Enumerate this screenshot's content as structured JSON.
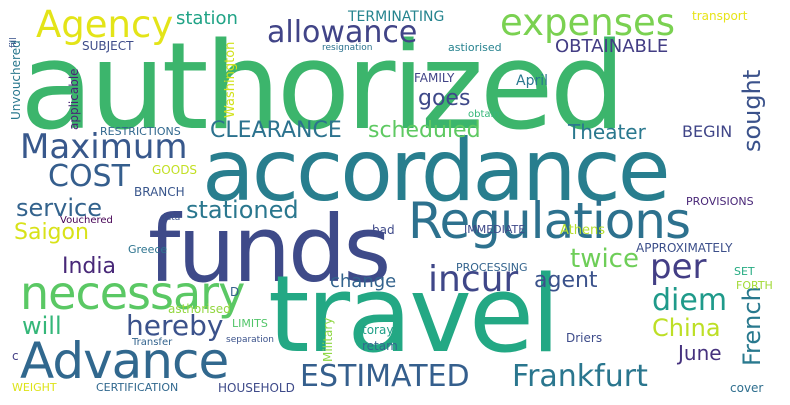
{
  "words": [
    {
      "text": "authorized",
      "color": "#3cb56c"
    },
    {
      "text": "accordance",
      "color": "#287e8e"
    },
    {
      "text": "funds",
      "color": "#3e4a89"
    },
    {
      "text": "travel",
      "color": "#23a884"
    },
    {
      "text": "Regulations",
      "color": "#2d718e"
    },
    {
      "text": "Advance",
      "color": "#31688e"
    },
    {
      "text": "necessary",
      "color": "#5ac864"
    },
    {
      "text": "expenses",
      "color": "#7ad151"
    },
    {
      "text": "Agency",
      "color": "#e3e418"
    },
    {
      "text": "allowance",
      "color": "#414487"
    },
    {
      "text": "Maximum",
      "color": "#38588c"
    },
    {
      "text": "ESTIMATED",
      "color": "#355f8d"
    },
    {
      "text": "Frankfurt",
      "color": "#2a768e"
    },
    {
      "text": "incur",
      "color": "#3f4788"
    },
    {
      "text": "per",
      "color": "#433e85"
    },
    {
      "text": "diem",
      "color": "#1f9a8a"
    },
    {
      "text": "hereby",
      "color": "#3b528b"
    },
    {
      "text": "COST",
      "color": "#355e8d"
    },
    {
      "text": "service",
      "color": "#33638d"
    },
    {
      "text": "stationed",
      "color": "#2a778e"
    },
    {
      "text": "Saigon",
      "color": "#d8e219"
    },
    {
      "text": "India",
      "color": "#482878"
    },
    {
      "text": "will",
      "color": "#35b779"
    },
    {
      "text": "twice",
      "color": "#6ece58"
    },
    {
      "text": "French",
      "color": "#29798e"
    },
    {
      "text": "China",
      "color": "#bddf26"
    },
    {
      "text": "June",
      "color": "#46327e"
    },
    {
      "text": "agent",
      "color": "#3b528b"
    },
    {
      "text": "change",
      "color": "#33638d"
    },
    {
      "text": "scheduled",
      "color": "#5ec962"
    },
    {
      "text": "CLEARANCE",
      "color": "#2c728e"
    },
    {
      "text": "Theater",
      "color": "#2a788e"
    },
    {
      "text": "BEGIN",
      "color": "#404688"
    },
    {
      "text": "sought",
      "color": "#3b528b"
    },
    {
      "text": "goes",
      "color": "#3e4989"
    },
    {
      "text": "OBTAINABLE",
      "color": "#433d84"
    },
    {
      "text": "station",
      "color": "#20a386"
    },
    {
      "text": "TERMINATING",
      "color": "#25848e"
    },
    {
      "text": "transport",
      "color": "#e7e419"
    },
    {
      "text": "SUBJECT",
      "color": "#3e4c8a"
    },
    {
      "text": "Washington",
      "color": "#d2e21b"
    },
    {
      "text": "applicable",
      "color": "#482475"
    },
    {
      "text": "Unvouchered",
      "color": "#2a788e"
    },
    {
      "text": "fill",
      "color": "#3b528b"
    },
    {
      "text": "resignation",
      "color": "#2c728e"
    },
    {
      "text": "astiorised",
      "color": "#26828e"
    },
    {
      "text": "FAMILY",
      "color": "#414487"
    },
    {
      "text": "April",
      "color": "#2a788e"
    },
    {
      "text": "obtain",
      "color": "#35b779"
    },
    {
      "text": "RESTRICTIONS",
      "color": "#31688e"
    },
    {
      "text": "GOODS",
      "color": "#c2df23"
    },
    {
      "text": "BRANCH",
      "color": "#39568c"
    },
    {
      "text": "Vouchered",
      "color": "#440154"
    },
    {
      "text": "data",
      "color": "#3b528b"
    },
    {
      "text": "bad",
      "color": "#3e4989"
    },
    {
      "text": "IMMEDIATE",
      "color": "#3e4989"
    },
    {
      "text": "Athens",
      "color": "#b5de2b"
    },
    {
      "text": "PROVISIONS",
      "color": "#482677"
    },
    {
      "text": "Greece",
      "color": "#2c738e"
    },
    {
      "text": "APPROXIMATELY",
      "color": "#3c4f8a"
    },
    {
      "text": "PROCESSING",
      "color": "#33638d"
    },
    {
      "text": "SET",
      "color": "#25ab82"
    },
    {
      "text": "FORTH",
      "color": "#a2da37"
    },
    {
      "text": "D",
      "color": "#355f8d"
    },
    {
      "text": "asthorised",
      "color": "#93d741"
    },
    {
      "text": "LIMITS",
      "color": "#52c569"
    },
    {
      "text": "Transfer",
      "color": "#33638d"
    },
    {
      "text": "separation",
      "color": "#3b528b"
    },
    {
      "text": "Military",
      "color": "#8fd744"
    },
    {
      "text": "toray",
      "color": "#1fa088"
    },
    {
      "text": "retam",
      "color": "#31688e"
    },
    {
      "text": "Driers",
      "color": "#3e4c8a"
    },
    {
      "text": "c",
      "color": "#433e85"
    },
    {
      "text": "WEIGHT",
      "color": "#dde318"
    },
    {
      "text": "CERTIFICATION",
      "color": "#31688e"
    },
    {
      "text": "HOUSEHOLD",
      "color": "#3e4a89"
    },
    {
      "text": "cover",
      "color": "#2e6e8e"
    }
  ]
}
